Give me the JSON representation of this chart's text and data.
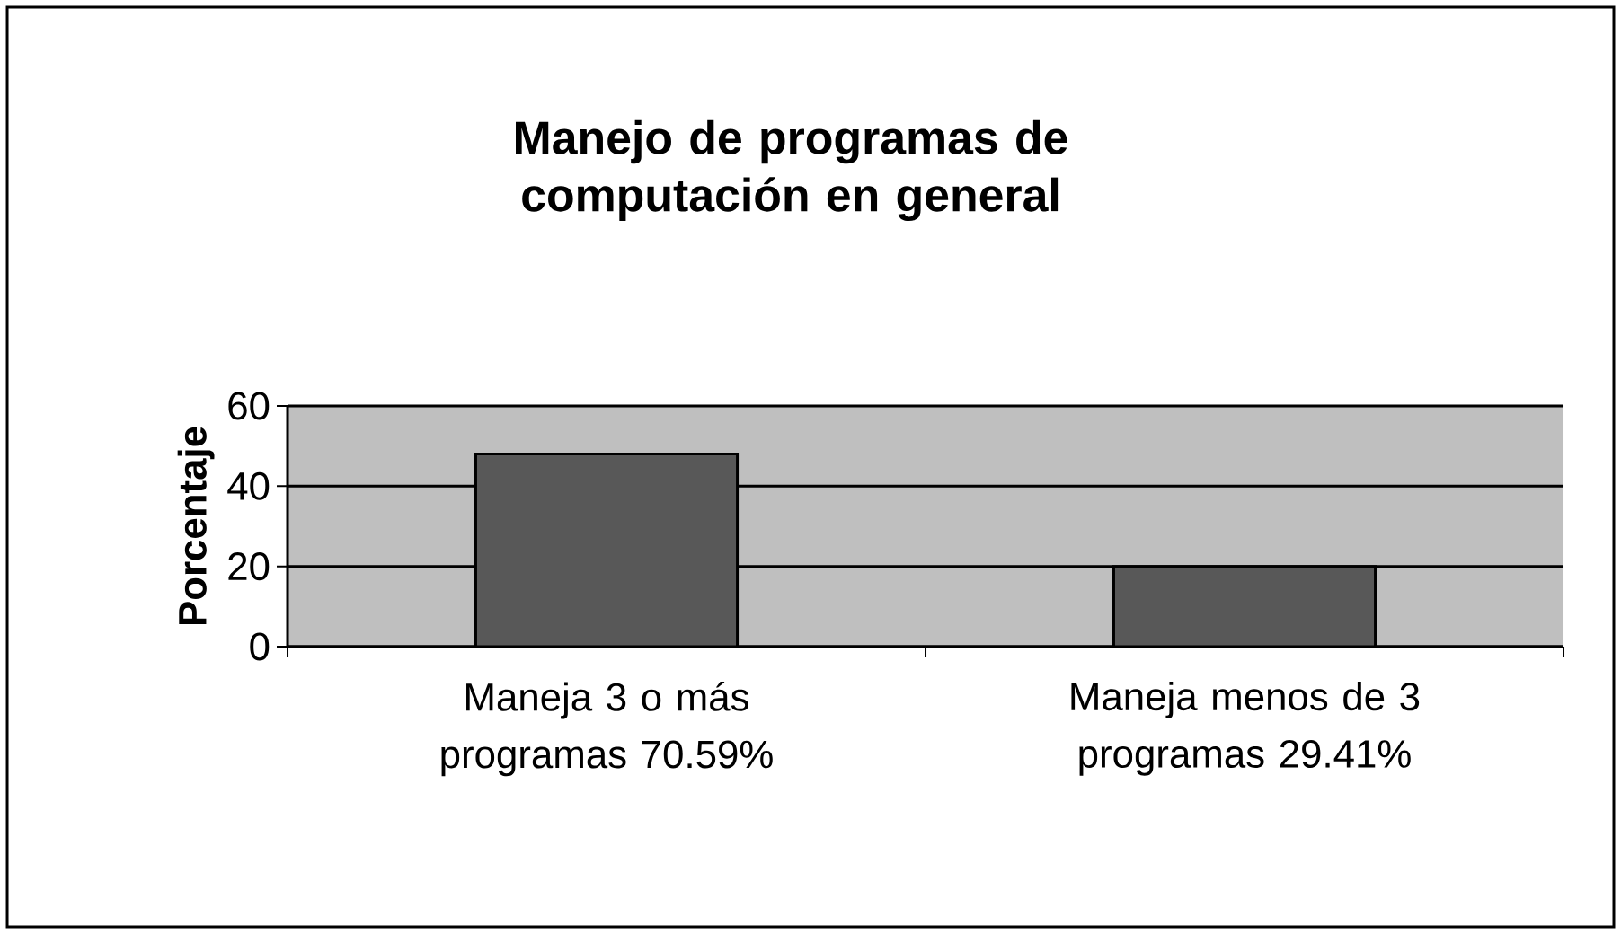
{
  "chart_data": {
    "type": "bar",
    "title": "Manejo de programas de computación en general",
    "ylabel": "Porcentaje",
    "categories": [
      "Maneja 3 o más programas 70.59%",
      "Maneja menos de 3 programas 29.41%"
    ],
    "values": [
      48,
      20
    ],
    "color": "#585858",
    "ylim": [
      0,
      60
    ],
    "yticks": [
      0,
      20,
      40,
      60
    ],
    "grid": "y"
  }
}
